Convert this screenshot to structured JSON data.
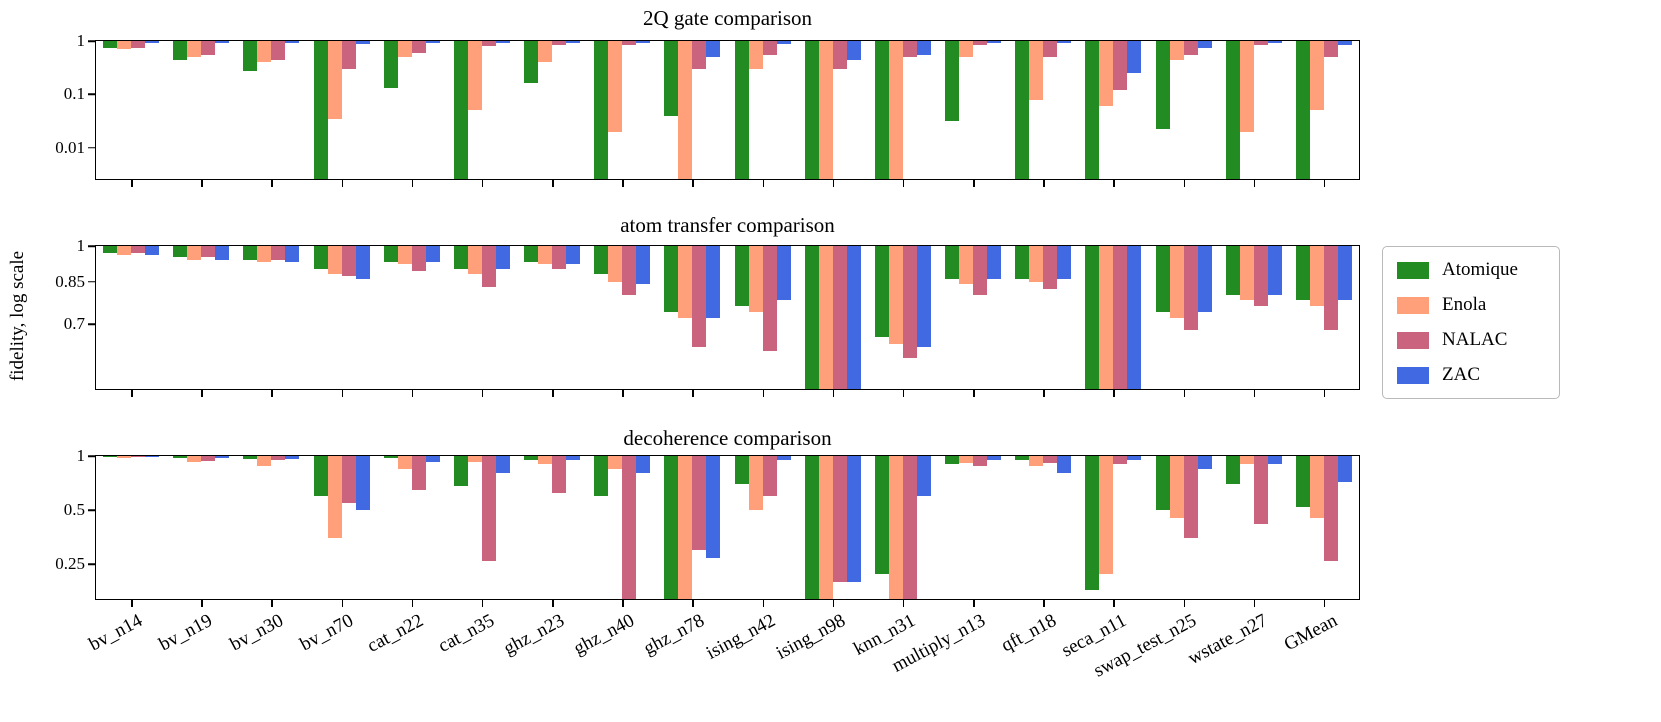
{
  "figure": {
    "ylabel": "fidelity, log scale",
    "background": "#ffffff"
  },
  "legend": {
    "entries": [
      "Atomique",
      "Enola",
      "NALAC",
      "ZAC"
    ]
  },
  "chart_data": [
    {
      "type": "bar",
      "title": "2Q gate comparison",
      "yscale": "log",
      "yticks": [
        1,
        0.1,
        0.01
      ],
      "ymin": 0.0026,
      "ymax": 1,
      "bars_hang_from_top": true,
      "categories": [
        "bv_n14",
        "bv_n19",
        "bv_n30",
        "bv_n70",
        "cat_n22",
        "cat_n35",
        "ghz_n23",
        "ghz_n40",
        "ghz_n78",
        "ising_n42",
        "ising_n98",
        "knn_n31",
        "multiply_n13",
        "qft_n18",
        "seca_n11",
        "swap_test_n25",
        "wstate_n27",
        "GMean"
      ],
      "series": [
        {
          "name": "Atomique",
          "color": "#228b22",
          "values": [
            0.75,
            0.45,
            0.27,
            0.0026,
            0.13,
            0.0026,
            0.16,
            0.0026,
            0.04,
            0.0026,
            0.0026,
            0.0026,
            0.032,
            0.0026,
            0.0026,
            0.022,
            0.0026,
            0.0026
          ]
        },
        {
          "name": "Enola",
          "color": "#ffa07a",
          "values": [
            0.7,
            0.5,
            0.4,
            0.035,
            0.5,
            0.05,
            0.4,
            0.02,
            0.0026,
            0.3,
            0.0026,
            0.0026,
            0.5,
            0.08,
            0.06,
            0.45,
            0.02,
            0.05
          ]
        },
        {
          "name": "NALAC",
          "color": "#c9637e",
          "values": [
            0.73,
            0.55,
            0.45,
            0.3,
            0.6,
            0.8,
            0.85,
            0.85,
            0.3,
            0.55,
            0.3,
            0.5,
            0.85,
            0.5,
            0.12,
            0.55,
            0.85,
            0.5
          ]
        },
        {
          "name": "ZAC",
          "color": "#4169e1",
          "values": [
            0.9,
            0.9,
            0.9,
            0.88,
            0.93,
            0.92,
            0.93,
            0.92,
            0.5,
            0.88,
            0.45,
            0.55,
            0.93,
            0.93,
            0.25,
            0.75,
            0.92,
            0.85
          ]
        }
      ]
    },
    {
      "type": "bar",
      "title": "atom transfer comparison",
      "yscale": "log",
      "yticks": [
        1,
        0.85,
        0.7
      ],
      "ymin": 0.52,
      "ymax": 1,
      "bars_hang_from_top": true,
      "categories": [
        "bv_n14",
        "bv_n19",
        "bv_n30",
        "bv_n70",
        "cat_n22",
        "cat_n35",
        "ghz_n23",
        "ghz_n40",
        "ghz_n78",
        "ising_n42",
        "ising_n98",
        "knn_n31",
        "multiply_n13",
        "qft_n18",
        "seca_n11",
        "swap_test_n25",
        "wstate_n27",
        "GMean"
      ],
      "series": [
        {
          "name": "Atomique",
          "color": "#228b22",
          "values": [
            0.97,
            0.95,
            0.94,
            0.9,
            0.93,
            0.9,
            0.93,
            0.88,
            0.74,
            0.76,
            0.52,
            0.66,
            0.86,
            0.86,
            0.52,
            0.74,
            0.8,
            0.78
          ]
        },
        {
          "name": "Enola",
          "color": "#ffa07a",
          "values": [
            0.96,
            0.94,
            0.93,
            0.88,
            0.92,
            0.88,
            0.92,
            0.85,
            0.72,
            0.74,
            0.52,
            0.64,
            0.84,
            0.85,
            0.52,
            0.72,
            0.78,
            0.76
          ]
        },
        {
          "name": "NALAC",
          "color": "#c9637e",
          "values": [
            0.97,
            0.95,
            0.94,
            0.87,
            0.89,
            0.83,
            0.9,
            0.8,
            0.63,
            0.62,
            0.52,
            0.6,
            0.8,
            0.82,
            0.52,
            0.68,
            0.76,
            0.68
          ]
        },
        {
          "name": "ZAC",
          "color": "#4169e1",
          "values": [
            0.96,
            0.94,
            0.93,
            0.86,
            0.93,
            0.9,
            0.92,
            0.84,
            0.72,
            0.78,
            0.52,
            0.63,
            0.86,
            0.86,
            0.52,
            0.74,
            0.8,
            0.78
          ]
        }
      ]
    },
    {
      "type": "bar",
      "title": "decoherence comparison",
      "yscale": "log",
      "yticks": [
        1,
        0.5,
        0.25
      ],
      "ymin": 0.16,
      "ymax": 1,
      "bars_hang_from_top": true,
      "categories": [
        "bv_n14",
        "bv_n19",
        "bv_n30",
        "bv_n70",
        "cat_n22",
        "cat_n35",
        "ghz_n23",
        "ghz_n40",
        "ghz_n78",
        "ising_n42",
        "ising_n98",
        "knn_n31",
        "multiply_n13",
        "qft_n18",
        "seca_n11",
        "swap_test_n25",
        "wstate_n27",
        "GMean"
      ],
      "series": [
        {
          "name": "Atomique",
          "color": "#228b22",
          "values": [
            0.99,
            0.97,
            0.96,
            0.6,
            0.97,
            0.68,
            0.95,
            0.6,
            0.16,
            0.7,
            0.16,
            0.22,
            0.9,
            0.95,
            0.18,
            0.5,
            0.7,
            0.52
          ]
        },
        {
          "name": "Enola",
          "color": "#ffa07a",
          "values": [
            0.98,
            0.93,
            0.88,
            0.35,
            0.85,
            0.93,
            0.9,
            0.85,
            0.16,
            0.5,
            0.16,
            0.16,
            0.92,
            0.88,
            0.22,
            0.45,
            0.9,
            0.45
          ]
        },
        {
          "name": "NALAC",
          "color": "#c9637e",
          "values": [
            0.99,
            0.94,
            0.95,
            0.55,
            0.65,
            0.26,
            0.62,
            0.16,
            0.3,
            0.6,
            0.2,
            0.16,
            0.88,
            0.92,
            0.9,
            0.35,
            0.42,
            0.26
          ]
        },
        {
          "name": "ZAC",
          "color": "#4169e1",
          "values": [
            0.99,
            0.97,
            0.96,
            0.5,
            0.93,
            0.8,
            0.95,
            0.8,
            0.27,
            0.95,
            0.2,
            0.6,
            0.95,
            0.8,
            0.95,
            0.85,
            0.9,
            0.72
          ]
        }
      ]
    }
  ]
}
